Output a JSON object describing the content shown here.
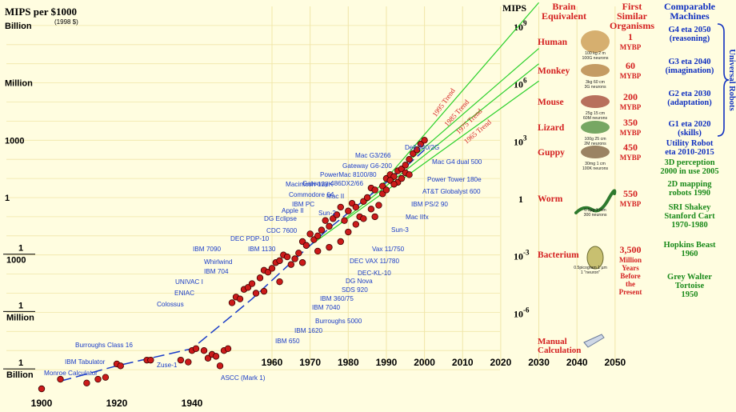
{
  "chart_data": {
    "type": "scatter",
    "title": "MIPS per $1000",
    "subtitle": "(1998 $)",
    "x_axis": {
      "ticks": [
        "1900",
        "1920",
        "1940",
        "1960",
        "1970",
        "1980",
        "1990",
        "2000",
        "2010",
        "2020",
        "2030",
        "2040",
        "2050"
      ]
    },
    "y_axis_left": {
      "ticks": [
        "Billion",
        "Million",
        "1000",
        "1",
        "1 / 1000",
        "1 / Million",
        "1 / Billion"
      ]
    },
    "y_axis_right": {
      "title": "MIPS",
      "ticks": [
        "10^9",
        "10^6",
        "10^3",
        "1",
        "10^-3",
        "10^-6"
      ]
    },
    "trend_labels": [
      "1995 Trend",
      "1985 Trend",
      "1975 Trend",
      "1965 Trend"
    ],
    "machines": [
      {
        "label": "Dell 340/2G",
        "year": 2000,
        "log_mips": 3.0
      },
      {
        "label": "Mac G3/266",
        "year": 1998,
        "log_mips": 2.3
      },
      {
        "label": "Gateway G6-200",
        "year": 1997,
        "log_mips": 2.0
      },
      {
        "label": "PowerMac 8100/80",
        "year": 1994,
        "log_mips": 1.8
      },
      {
        "label": "Gateway-486DX2/66",
        "year": 1993,
        "log_mips": 1.4
      },
      {
        "label": "Mac G4 dual 500",
        "year": 2000,
        "log_mips": 1.0
      },
      {
        "label": "Mac II",
        "year": 1987,
        "log_mips": 0.9
      },
      {
        "label": "Macintosh-128K",
        "year": 1984,
        "log_mips": 0.5
      },
      {
        "label": "Power Tower 180e",
        "year": 1996,
        "log_mips": 0.5
      },
      {
        "label": "Commodore 64",
        "year": 1982,
        "log_mips": 0.1
      },
      {
        "label": "AT&T Globalyst 600",
        "year": 1995,
        "log_mips": 0.1
      },
      {
        "label": "IBM PC",
        "year": 1982,
        "log_mips": -0.3
      },
      {
        "label": "IBM PS/2 90",
        "year": 1990,
        "log_mips": -0.3
      },
      {
        "label": "Apple II",
        "year": 1977,
        "log_mips": -0.6
      },
      {
        "label": "Sun-2",
        "year": 1984,
        "log_mips": -0.7
      },
      {
        "label": "DG Eclipse",
        "year": 1975,
        "log_mips": -0.9
      },
      {
        "label": "Mac IIfx",
        "year": 1990,
        "log_mips": -0.8
      },
      {
        "label": "CDC 7600",
        "year": 1969,
        "log_mips": -1.3
      },
      {
        "label": "Sun-3",
        "year": 1987,
        "log_mips": -1.4
      },
      {
        "label": "DEC PDP-10",
        "year": 1967,
        "log_mips": -1.7
      },
      {
        "label": "IBM 7090",
        "year": 1960,
        "log_mips": -2.2
      },
      {
        "label": "IBM 1130",
        "year": 1965,
        "log_mips": -2.3
      },
      {
        "label": "Vax 11/750",
        "year": 1984,
        "log_mips": -2.2
      },
      {
        "label": "Whirlwind",
        "year": 1955,
        "log_mips": -2.7
      },
      {
        "label": "DEC VAX 11/780",
        "year": 1979,
        "log_mips": -2.8
      },
      {
        "label": "IBM 704",
        "year": 1956,
        "log_mips": -3.1
      },
      {
        "label": "DEC-KL-10",
        "year": 1978,
        "log_mips": -3.2
      },
      {
        "label": "UNIVAC I",
        "year": 1951,
        "log_mips": -3.6
      },
      {
        "label": "DG Nova",
        "year": 1970,
        "log_mips": -3.5
      },
      {
        "label": "SDS 920",
        "year": 1964,
        "log_mips": -3.8
      },
      {
        "label": "ENIAC",
        "year": 1946,
        "log_mips": -4.1
      },
      {
        "label": "IBM 360/75",
        "year": 1966,
        "log_mips": -4.2
      },
      {
        "label": "Colossus",
        "year": 1943,
        "log_mips": -4.6
      },
      {
        "label": "IBM 7040",
        "year": 1963,
        "log_mips": -4.8
      },
      {
        "label": "Burroughs 5000",
        "year": 1963,
        "log_mips": -5.2
      },
      {
        "label": "IBM 1620",
        "year": 1960,
        "log_mips": -5.5
      },
      {
        "label": "IBM 650",
        "year": 1955,
        "log_mips": -6.3
      },
      {
        "label": "Burroughs Class 16",
        "year": 1925,
        "log_mips": -7.3
      },
      {
        "label": "IBM Tabulator",
        "year": 1930,
        "log_mips": -7.9
      },
      {
        "label": "Zuse-1",
        "year": 1938,
        "log_mips": -7.8
      },
      {
        "label": "Monroe Calculator",
        "year": 1920,
        "log_mips": -8.3
      },
      {
        "label": "ASCC (Mark 1)",
        "year": 1944,
        "log_mips": -8.3
      }
    ],
    "points": [
      [
        1900,
        -10.0
      ],
      [
        1905,
        -9.5
      ],
      [
        1912,
        -9.7
      ],
      [
        1915,
        -9.5
      ],
      [
        1917,
        -9.4
      ],
      [
        1920,
        -8.7
      ],
      [
        1921,
        -8.8
      ],
      [
        1928,
        -8.5
      ],
      [
        1929,
        -8.5
      ],
      [
        1937,
        -8.5
      ],
      [
        1939,
        -8.6
      ],
      [
        1940,
        -8.0
      ],
      [
        1941,
        -7.9
      ],
      [
        1943,
        -8.0
      ],
      [
        1944,
        -8.4
      ],
      [
        1945,
        -8.2
      ],
      [
        1946,
        -8.3
      ],
      [
        1947,
        -8.8
      ],
      [
        1948,
        -8.0
      ],
      [
        1949,
        -7.9
      ],
      [
        1950,
        -5.5
      ],
      [
        1951,
        -5.2
      ],
      [
        1952,
        -5.3
      ],
      [
        1953,
        -4.8
      ],
      [
        1954,
        -4.7
      ],
      [
        1955,
        -4.5
      ],
      [
        1956,
        -5.0
      ],
      [
        1957,
        -4.2
      ],
      [
        1958,
        -3.8
      ],
      [
        1959,
        -3.9
      ],
      [
        1960,
        -3.7
      ],
      [
        1961,
        -3.4
      ],
      [
        1962,
        -3.3
      ],
      [
        1963,
        -3.0
      ],
      [
        1964,
        -3.1
      ],
      [
        1965,
        -3.5
      ],
      [
        1966,
        -3.2
      ],
      [
        1967,
        -2.9
      ],
      [
        1968,
        -2.3
      ],
      [
        1969,
        -2.5
      ],
      [
        1970,
        -1.9
      ],
      [
        1971,
        -2.2
      ],
      [
        1972,
        -2.0
      ],
      [
        1973,
        -1.7
      ],
      [
        1974,
        -1.2
      ],
      [
        1975,
        -1.5
      ],
      [
        1976,
        -1.1
      ],
      [
        1977,
        -0.9
      ],
      [
        1978,
        -0.5
      ],
      [
        1979,
        -1.2
      ],
      [
        1980,
        -0.7
      ],
      [
        1981,
        -0.3
      ],
      [
        1982,
        -0.5
      ],
      [
        1983,
        -1.0
      ],
      [
        1984,
        -0.2
      ],
      [
        1985,
        0.0
      ],
      [
        1986,
        0.5
      ],
      [
        1987,
        0.4
      ],
      [
        1988,
        -0.4
      ],
      [
        1989,
        0.2
      ],
      [
        1990,
        1.0
      ],
      [
        1991,
        1.2
      ],
      [
        1992,
        1.1
      ],
      [
        1993,
        1.4
      ],
      [
        1994,
        1.5
      ],
      [
        1995,
        1.7
      ],
      [
        1996,
        2.0
      ],
      [
        1997,
        2.3
      ],
      [
        1998,
        2.5
      ],
      [
        1999,
        2.8
      ],
      [
        2000,
        3.0
      ],
      [
        1986,
        -0.6
      ],
      [
        1989,
        0.6
      ],
      [
        1991,
        0.9
      ],
      [
        1993,
        0.8
      ],
      [
        1995,
        1.3
      ],
      [
        1982,
        -1.4
      ],
      [
        1978,
        -2.3
      ],
      [
        1975,
        -2.6
      ],
      [
        1972,
        -2.8
      ],
      [
        1968,
        -3.4
      ],
      [
        1962,
        -4.4
      ],
      [
        1958,
        -4.9
      ],
      [
        1980,
        -1.8
      ],
      [
        1984,
        -1.1
      ],
      [
        1987,
        -1.0
      ],
      [
        1990,
        0.4
      ],
      [
        1992,
        0.7
      ],
      [
        1994,
        1.0
      ],
      [
        1996,
        1.2
      ]
    ],
    "columns": {
      "brain_equivalent": "Brain Equivalent",
      "first_similar_organisms": "First Similar Organisms",
      "comparable_machines": "Comparable Machines"
    },
    "organisms": [
      {
        "name": "Human",
        "mybp": "1",
        "unit": "MYBP",
        "note": "100 kg   2 m\n100G neurons"
      },
      {
        "name": "Monkey",
        "mybp": "60",
        "unit": "MYBP",
        "note": "3kg   60 cm\n3G neurons"
      },
      {
        "name": "Mouse",
        "mybp": "200",
        "unit": "MYBP",
        "note": "25g   15 cm\n60M neurons"
      },
      {
        "name": "Lizard",
        "mybp": "350",
        "unit": "MYBP",
        "note": "100g   25 cm\n2M neurons"
      },
      {
        "name": "Guppy",
        "mybp": "450",
        "unit": "MYBP",
        "note": "30mg   1 cm\n100K neurons"
      },
      {
        "name": "Worm",
        "mybp": "550",
        "unit": "MYBP",
        "note": "0.5µg 1 mm\n300 neurons"
      },
      {
        "name": "Bacterium",
        "mybp": "3,500",
        "unit": "Million Years Before the Present",
        "note": "0.5picogram 1 µm\n1 \"neuron\""
      }
    ],
    "manual_label": "Manual Calculation",
    "robots_blue": [
      "G4 eta 2050 (reasoning)",
      "G3 eta 2040 (imagination)",
      "G2 eta 2030 (adaptation)",
      "G1 eta 2020 (skills)"
    ],
    "universal_robots_label": "Universal Robots",
    "robots_mixed": [
      {
        "text": "Utility Robot eta 2010-2015",
        "color": "#1030c0"
      },
      {
        "text": "3D perception 2000 in use 2005",
        "color": "#1a8a1a"
      },
      {
        "text": "2D mapping robots 1990",
        "color": "#1a8a1a"
      },
      {
        "text": "SRI Shakey Stanford Cart 1970-1980",
        "color": "#1a8a1a"
      },
      {
        "text": "Hopkins Beast 1960",
        "color": "#1a8a1a"
      },
      {
        "text": "Grey Walter Tortoise 1950",
        "color": "#1a8a1a"
      }
    ]
  },
  "colors": {
    "background": "#fffde0",
    "grid": "#f0e6a8",
    "point": "#cc1a1a",
    "trend_green": "#2bd02b",
    "trend_dash": "#1a3cc8",
    "machine_label": "#1a3cc8",
    "organism_red": "#d42020",
    "robot_blue": "#1030c0",
    "robot_green": "#1a8a1a"
  }
}
